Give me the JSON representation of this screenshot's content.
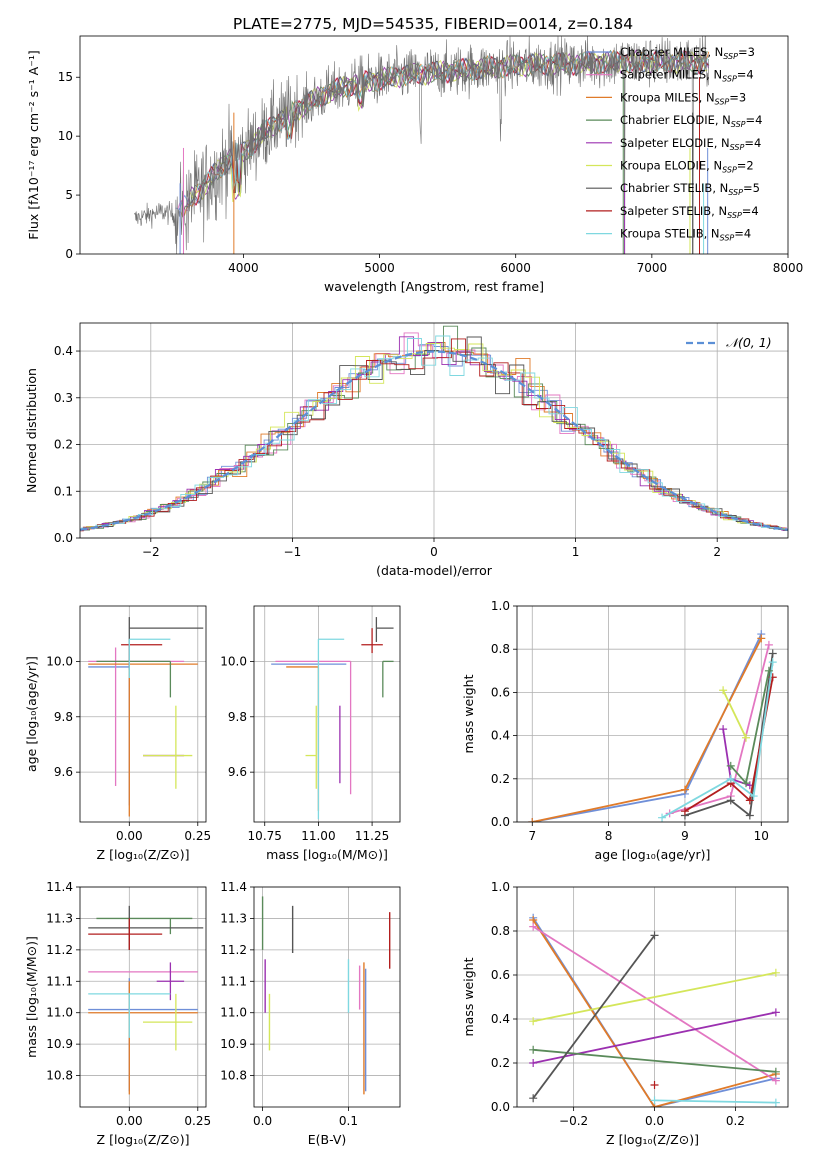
{
  "title": "PLATE=2775, MJD=54535, FIBERID=0014, z=0.184",
  "colors": {
    "chabrier_miles": "#6f8fd8",
    "salpeter_miles": "#e377c2",
    "kroupa_miles": "#e07b2a",
    "chabrier_elodie": "#5a8a5a",
    "salpeter_elodie": "#9b30b0",
    "kroupa_elodie": "#d4e65a",
    "chabrier_stelib": "#555555",
    "salpeter_stelib": "#b21e1e",
    "kroupa_stelib": "#7fd8e0",
    "normal": "#5b8fd6",
    "data_spectrum": "#707070"
  },
  "chart_data": [
    {
      "id": "spectrum",
      "type": "line",
      "xlabel": "wavelength [Angstrom, rest frame]",
      "ylabel": "Flux [fλ10⁻¹⁷ erg cm⁻² s⁻¹ A⁻¹]",
      "xlim": [
        2800,
        8000
      ],
      "ylim": [
        0,
        18.5
      ],
      "xticks": [
        4000,
        5000,
        6000,
        7000,
        8000
      ],
      "yticks": [
        0,
        5,
        10,
        15
      ],
      "grid": false,
      "legend_position": "top-right",
      "legend": [
        {
          "key": "chabrier_miles",
          "label": "Chabrier MILES, N",
          "n": "3"
        },
        {
          "key": "salpeter_miles",
          "label": "Salpeter MILES, N",
          "n": "4"
        },
        {
          "key": "kroupa_miles",
          "label": "Kroupa MILES, N",
          "n": "3"
        },
        {
          "key": "chabrier_elodie",
          "label": "Chabrier ELODIE, N",
          "n": "4"
        },
        {
          "key": "salpeter_elodie",
          "label": "Salpeter ELODIE, N",
          "n": "4"
        },
        {
          "key": "kroupa_elodie",
          "label": "Kroupa ELODIE, N",
          "n": "2"
        },
        {
          "key": "chabrier_stelib",
          "label": "Chabrier STELIB, N",
          "n": "5"
        },
        {
          "key": "salpeter_stelib",
          "label": "Salpeter STELIB, N",
          "n": "4"
        },
        {
          "key": "kroupa_stelib",
          "label": "Kroupa STELIB, N",
          "n": "4"
        }
      ],
      "legend_subscript": "SSP",
      "continuum": [
        [
          3200,
          3.0
        ],
        [
          3400,
          3.6
        ],
        [
          3500,
          3.3
        ],
        [
          3700,
          5.6
        ],
        [
          3900,
          8.2
        ],
        [
          4000,
          8.6
        ],
        [
          4200,
          10.8
        ],
        [
          4400,
          12.3
        ],
        [
          4600,
          13.6
        ],
        [
          4800,
          14.4
        ],
        [
          5000,
          14.8
        ],
        [
          5200,
          15.2
        ],
        [
          5500,
          15.5
        ],
        [
          5800,
          15.8
        ],
        [
          6000,
          16.0
        ],
        [
          6200,
          16.1
        ],
        [
          6500,
          16.2
        ],
        [
          6800,
          16.3
        ],
        [
          7100,
          16.3
        ],
        [
          7400,
          16.3
        ]
      ]
    },
    {
      "id": "residuals",
      "type": "histogram",
      "xlabel": "(data-model)/error",
      "ylabel": "Normed distribution",
      "xlim": [
        -2.5,
        2.5
      ],
      "ylim": [
        0,
        0.46
      ],
      "xticks": [
        -2,
        -1,
        0,
        1,
        2
      ],
      "yticks": [
        0.0,
        0.1,
        0.2,
        0.3,
        0.4
      ],
      "grid": true,
      "legend_position": "top-right",
      "normal_label": "𝒩(0, 1)"
    },
    {
      "id": "age_vs_Z",
      "type": "errorbar",
      "xlabel": "Z [log₁₀(Z/Z⊙)]",
      "ylabel": "age  [log₁₀(age/yr)]",
      "xlim": [
        -0.18,
        0.28
      ],
      "ylim": [
        9.42,
        10.2
      ],
      "xticks": [
        0.0,
        0.25
      ],
      "yticks": [
        9.6,
        9.8,
        10.0
      ],
      "grid": true,
      "points": [
        {
          "key": "chabrier_miles",
          "x": 0.0,
          "xerr": [
            0.15,
            0.0
          ],
          "y": 9.98,
          "yerr": [
            0.5,
            0.1
          ]
        },
        {
          "key": "salpeter_miles",
          "x": -0.05,
          "xerr": [
            0.1,
            0.25
          ],
          "y": 10.0,
          "yerr": [
            0.45,
            0.05
          ]
        },
        {
          "key": "kroupa_miles",
          "x": 0.0,
          "xerr": [
            0.15,
            0.25
          ],
          "y": 9.99,
          "yerr": [
            0.55,
            0.05
          ]
        },
        {
          "key": "chabrier_elodie",
          "x": 0.15,
          "xerr": [
            0.27,
            0.0
          ],
          "y": 10.0,
          "yerr": [
            0.13,
            0.0
          ]
        },
        {
          "key": "salpeter_elodie",
          "x": 0.15,
          "xerr": [
            0.1,
            0.05
          ],
          "y": 9.66,
          "yerr": [
            0.0,
            0.0
          ]
        },
        {
          "key": "kroupa_elodie",
          "x": 0.17,
          "xerr": [
            0.12,
            0.06
          ],
          "y": 9.66,
          "yerr": [
            0.12,
            0.18
          ]
        },
        {
          "key": "chabrier_stelib",
          "x": 0.0,
          "xerr": [
            0.0,
            0.27
          ],
          "y": 10.12,
          "yerr": [
            0.15,
            0.04
          ]
        },
        {
          "key": "salpeter_stelib",
          "x": 0.0,
          "xerr": [
            0.03,
            0.12
          ],
          "y": 10.06,
          "yerr": [
            0.08,
            0.0
          ]
        },
        {
          "key": "kroupa_stelib",
          "x": 0.0,
          "xerr": [
            0.0,
            0.15
          ],
          "y": 10.08,
          "yerr": [
            0.14,
            0.0
          ]
        }
      ]
    },
    {
      "id": "age_vs_mass",
      "type": "errorbar",
      "xlabel": "mass [log₁₀(M/M⊙)]",
      "ylabel": "",
      "xlim": [
        10.7,
        11.38
      ],
      "ylim": [
        9.42,
        10.2
      ],
      "xticks": [
        10.75,
        11.0,
        11.25
      ],
      "yticks": [
        9.6,
        9.8,
        10.0
      ],
      "grid": true,
      "points": [
        {
          "key": "chabrier_miles",
          "x": 11.0,
          "xerr": [
            0.22,
            0.13
          ],
          "y": 9.99,
          "yerr": [
            0.0,
            0.0
          ]
        },
        {
          "key": "salpeter_miles",
          "x": 11.15,
          "xerr": [
            0.35,
            0.0
          ],
          "y": 10.0,
          "yerr": [
            0.48,
            0.0
          ]
        },
        {
          "key": "kroupa_miles",
          "x": 11.0,
          "xerr": [
            0.15,
            0.0
          ],
          "y": 9.98,
          "yerr": [
            0.52,
            0.0
          ]
        },
        {
          "key": "chabrier_elodie",
          "x": 11.3,
          "xerr": [
            0.0,
            0.05
          ],
          "y": 10.0,
          "yerr": [
            0.13,
            0.0
          ]
        },
        {
          "key": "salpeter_elodie",
          "x": 11.1,
          "xerr": [
            0.0,
            0.0
          ],
          "y": 9.66,
          "yerr": [
            0.1,
            0.18
          ]
        },
        {
          "key": "kroupa_elodie",
          "x": 10.99,
          "xerr": [
            0.05,
            0.0
          ],
          "y": 9.66,
          "yerr": [
            0.12,
            0.18
          ]
        },
        {
          "key": "chabrier_stelib",
          "x": 11.27,
          "xerr": [
            0.0,
            0.08
          ],
          "y": 10.12,
          "yerr": [
            0.05,
            0.04
          ]
        },
        {
          "key": "salpeter_stelib",
          "x": 11.25,
          "xerr": [
            0.05,
            0.05
          ],
          "y": 10.06,
          "yerr": [
            0.03,
            0.06
          ]
        },
        {
          "key": "kroupa_stelib",
          "x": 11.0,
          "xerr": [
            0.0,
            0.12
          ],
          "y": 10.08,
          "yerr": [
            0.65,
            0.0
          ]
        }
      ]
    },
    {
      "id": "mass_weight_vs_age",
      "type": "line",
      "xlabel": "age  [log₁₀(age/yr)]",
      "ylabel": "mass weight",
      "xlim": [
        6.8,
        10.35
      ],
      "ylim": [
        0.0,
        1.0
      ],
      "xticks": [
        7,
        8,
        9,
        10
      ],
      "yticks": [
        0.0,
        0.2,
        0.4,
        0.6,
        0.8,
        1.0
      ],
      "grid": true,
      "series": [
        {
          "key": "chabrier_miles",
          "x": [
            7.0,
            9.0,
            10.0
          ],
          "y": [
            0.0,
            0.13,
            0.87
          ]
        },
        {
          "key": "kroupa_miles",
          "x": [
            7.0,
            9.0,
            10.0
          ],
          "y": [
            0.0,
            0.15,
            0.85
          ]
        },
        {
          "key": "salpeter_miles",
          "x": [
            8.8,
            9.6,
            10.1
          ],
          "y": [
            0.04,
            0.12,
            0.82
          ]
        },
        {
          "key": "salpeter_elodie",
          "x": [
            9.5,
            9.6,
            9.85
          ],
          "y": [
            0.43,
            0.2,
            0.17
          ]
        },
        {
          "key": "kroupa_elodie",
          "x": [
            9.5,
            9.8
          ],
          "y": [
            0.61,
            0.39
          ]
        },
        {
          "key": "chabrier_stelib",
          "x": [
            9.0,
            9.6,
            9.85,
            10.15
          ],
          "y": [
            0.03,
            0.1,
            0.03,
            0.78
          ]
        },
        {
          "key": "salpeter_stelib",
          "x": [
            9.0,
            9.6,
            9.85,
            10.15
          ],
          "y": [
            0.05,
            0.18,
            0.1,
            0.67
          ]
        },
        {
          "key": "kroupa_stelib",
          "x": [
            8.7,
            9.6,
            9.9,
            10.15
          ],
          "y": [
            0.02,
            0.2,
            0.12,
            0.74
          ]
        },
        {
          "key": "chabrier_elodie",
          "x": [
            9.6,
            9.8,
            10.1
          ],
          "y": [
            0.26,
            0.18,
            0.7
          ]
        }
      ]
    },
    {
      "id": "mass_vs_Z",
      "type": "errorbar",
      "xlabel": "Z [log₁₀(Z/Z⊙)]",
      "ylabel": "mass [log₁₀(M/M⊙)]",
      "xlim": [
        -0.18,
        0.28
      ],
      "ylim": [
        10.7,
        11.4
      ],
      "xticks": [
        0.0,
        0.25
      ],
      "yticks": [
        10.8,
        10.9,
        11.0,
        11.1,
        11.2,
        11.3,
        11.4
      ],
      "grid": true,
      "points": [
        {
          "key": "chabrier_miles",
          "x": 0.0,
          "xerr": [
            0.15,
            0.25
          ],
          "y": 11.01,
          "yerr": [
            0.26,
            0.1
          ]
        },
        {
          "key": "salpeter_miles",
          "x": 0.0,
          "xerr": [
            0.15,
            0.25
          ],
          "y": 11.13,
          "yerr": [
            0.0,
            0.0
          ]
        },
        {
          "key": "kroupa_miles",
          "x": 0.0,
          "xerr": [
            0.15,
            0.25
          ],
          "y": 11.0,
          "yerr": [
            0.26,
            0.1
          ]
        },
        {
          "key": "chabrier_elodie",
          "x": 0.15,
          "xerr": [
            0.27,
            0.08
          ],
          "y": 11.3,
          "yerr": [
            0.05,
            0.0
          ]
        },
        {
          "key": "salpeter_elodie",
          "x": 0.15,
          "xerr": [
            0.05,
            0.05
          ],
          "y": 11.1,
          "yerr": [
            0.06,
            0.06
          ]
        },
        {
          "key": "kroupa_elodie",
          "x": 0.17,
          "xerr": [
            0.12,
            0.06
          ],
          "y": 10.97,
          "yerr": [
            0.09,
            0.09
          ]
        },
        {
          "key": "chabrier_stelib",
          "x": 0.0,
          "xerr": [
            0.15,
            0.27
          ],
          "y": 11.27,
          "yerr": [
            0.07,
            0.07
          ]
        },
        {
          "key": "salpeter_stelib",
          "x": 0.0,
          "xerr": [
            0.15,
            0.12
          ],
          "y": 11.25,
          "yerr": [
            0.05,
            0.05
          ]
        },
        {
          "key": "kroupa_stelib",
          "x": 0.0,
          "xerr": [
            0.15,
            0.15
          ],
          "y": 11.06,
          "yerr": [
            0.14,
            0.0
          ]
        }
      ]
    },
    {
      "id": "mass_vs_ebv",
      "type": "errorbar",
      "xlabel": "E(B-V)",
      "ylabel": "",
      "xlim": [
        -0.01,
        0.16
      ],
      "ylim": [
        10.7,
        11.4
      ],
      "xticks": [
        0.0,
        0.1
      ],
      "yticks": [
        10.8,
        10.9,
        11.0,
        11.1,
        11.2,
        11.3,
        11.4
      ],
      "grid": true,
      "bars": [
        {
          "key": "chabrier_elodie",
          "x": 0.0,
          "y0": 11.2,
          "y1": 11.37
        },
        {
          "key": "salpeter_elodie",
          "x": 0.003,
          "y0": 11.0,
          "y1": 11.17
        },
        {
          "key": "kroupa_elodie",
          "x": 0.008,
          "y0": 10.88,
          "y1": 11.06
        },
        {
          "key": "chabrier_stelib",
          "x": 0.035,
          "y0": 11.19,
          "y1": 11.34
        },
        {
          "key": "kroupa_stelib",
          "x": 0.1,
          "y0": 11.0,
          "y1": 11.17
        },
        {
          "key": "salpeter_miles",
          "x": 0.113,
          "y0": 11.01,
          "y1": 11.15
        },
        {
          "key": "kroupa_miles",
          "x": 0.118,
          "y0": 10.74,
          "y1": 11.16
        },
        {
          "key": "chabrier_miles",
          "x": 0.12,
          "y0": 10.75,
          "y1": 11.14
        },
        {
          "key": "salpeter_stelib",
          "x": 0.148,
          "y0": 11.14,
          "y1": 11.32
        }
      ]
    },
    {
      "id": "mass_weight_vs_Z",
      "type": "line",
      "xlabel": "Z [log₁₀(Z/Z⊙)]",
      "ylabel": "mass weight",
      "xlim": [
        -0.34,
        0.33
      ],
      "ylim": [
        0.0,
        1.0
      ],
      "xticks": [
        -0.2,
        0.0,
        0.2
      ],
      "yticks": [
        0.0,
        0.2,
        0.4,
        0.6,
        0.8,
        1.0
      ],
      "grid": true,
      "series": [
        {
          "key": "chabrier_miles",
          "x": [
            -0.3,
            0.0,
            0.3
          ],
          "y": [
            0.86,
            0.0,
            0.13
          ]
        },
        {
          "key": "kroupa_miles",
          "x": [
            -0.3,
            0.0,
            0.3
          ],
          "y": [
            0.85,
            0.0,
            0.15
          ]
        },
        {
          "key": "salpeter_miles",
          "x": [
            -0.3,
            0.3
          ],
          "y": [
            0.82,
            0.12
          ]
        },
        {
          "key": "kroupa_elodie",
          "x": [
            -0.3,
            0.3
          ],
          "y": [
            0.39,
            0.61
          ]
        },
        {
          "key": "salpeter_elodie",
          "x": [
            -0.3,
            0.3
          ],
          "y": [
            0.2,
            0.43
          ]
        },
        {
          "key": "chabrier_elodie",
          "x": [
            -0.3,
            0.3
          ],
          "y": [
            0.26,
            0.16
          ]
        },
        {
          "key": "chabrier_stelib",
          "x": [
            -0.3,
            0.0
          ],
          "y": [
            0.04,
            0.78
          ]
        },
        {
          "key": "kroupa_stelib",
          "x": [
            0.0,
            0.3
          ],
          "y": [
            0.03,
            0.02
          ]
        },
        {
          "key": "salpeter_stelib",
          "x": [
            0.0
          ],
          "y": [
            0.1
          ]
        }
      ]
    }
  ]
}
